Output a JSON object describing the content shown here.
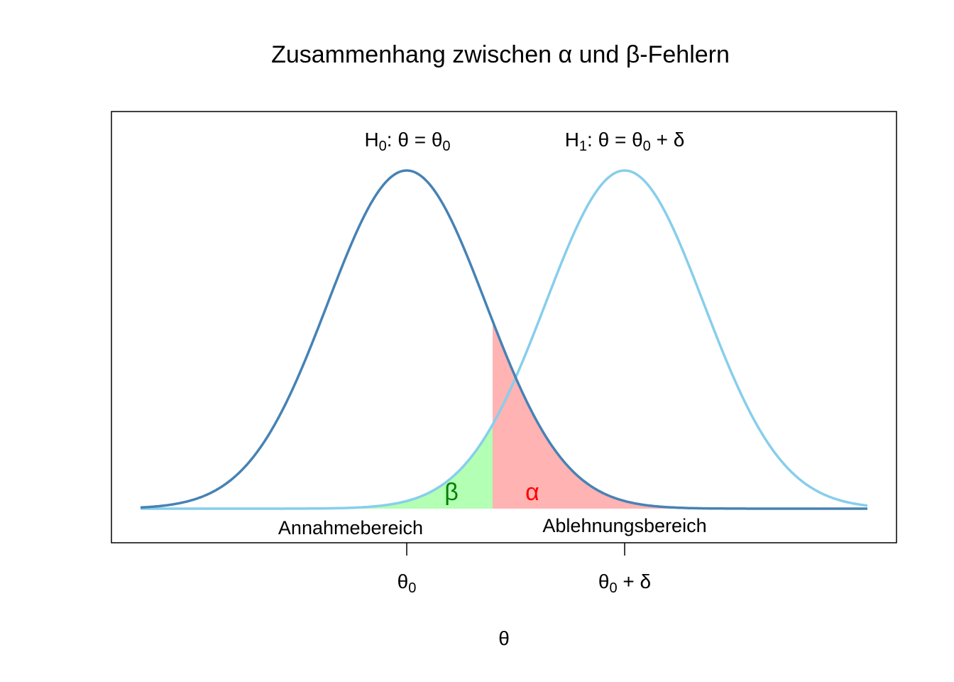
{
  "title": "Zusammenhang zwischen α und β-Fehlern",
  "h0_label": [
    "H",
    "0",
    ":  θ = θ",
    "0"
  ],
  "h1_label": [
    "H",
    "1",
    ":  θ = θ",
    "0",
    " + δ"
  ],
  "beta_label": "β",
  "alpha_label": "α",
  "acceptance_region": "Annahmebereich",
  "rejection_region": "Ablehnungsbereich",
  "x_ticks": [
    [
      "θ",
      "0"
    ],
    [
      "θ",
      "0",
      " + δ"
    ]
  ],
  "x_axis_label": "θ"
}
